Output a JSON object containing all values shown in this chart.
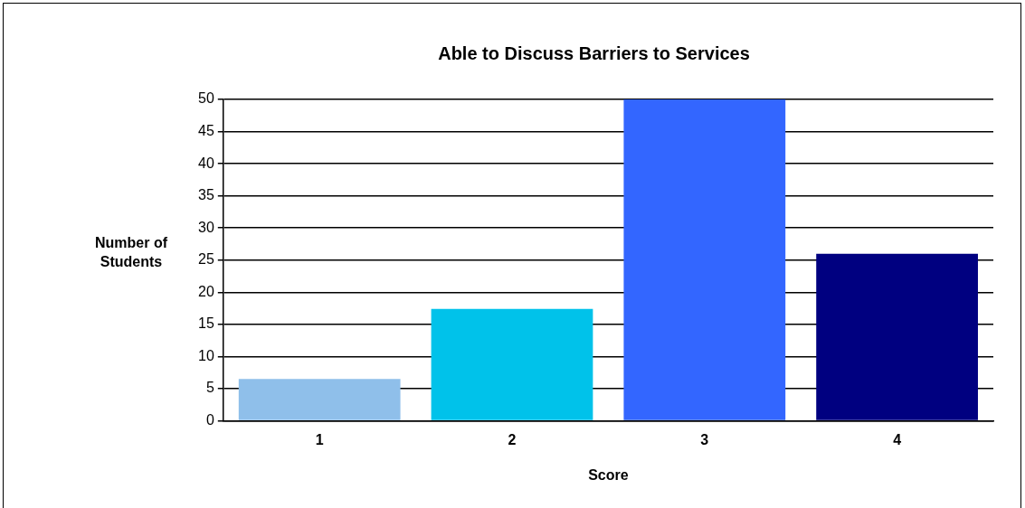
{
  "chart_data": {
    "type": "bar",
    "title": "Able to Discuss Barriers to Services",
    "xlabel": "Score",
    "ylabel": "Number of Students",
    "categories": [
      "1",
      "2",
      "3",
      "4"
    ],
    "values": [
      6.5,
      17.4,
      50,
      26
    ],
    "colors": [
      "#8fbfea",
      "#00c2ea",
      "#3366ff",
      "#000080"
    ],
    "ylim": [
      0,
      50
    ],
    "yticks": [
      0,
      5,
      10,
      15,
      20,
      25,
      30,
      35,
      40,
      45,
      50
    ],
    "grid": "y",
    "legend": false
  }
}
